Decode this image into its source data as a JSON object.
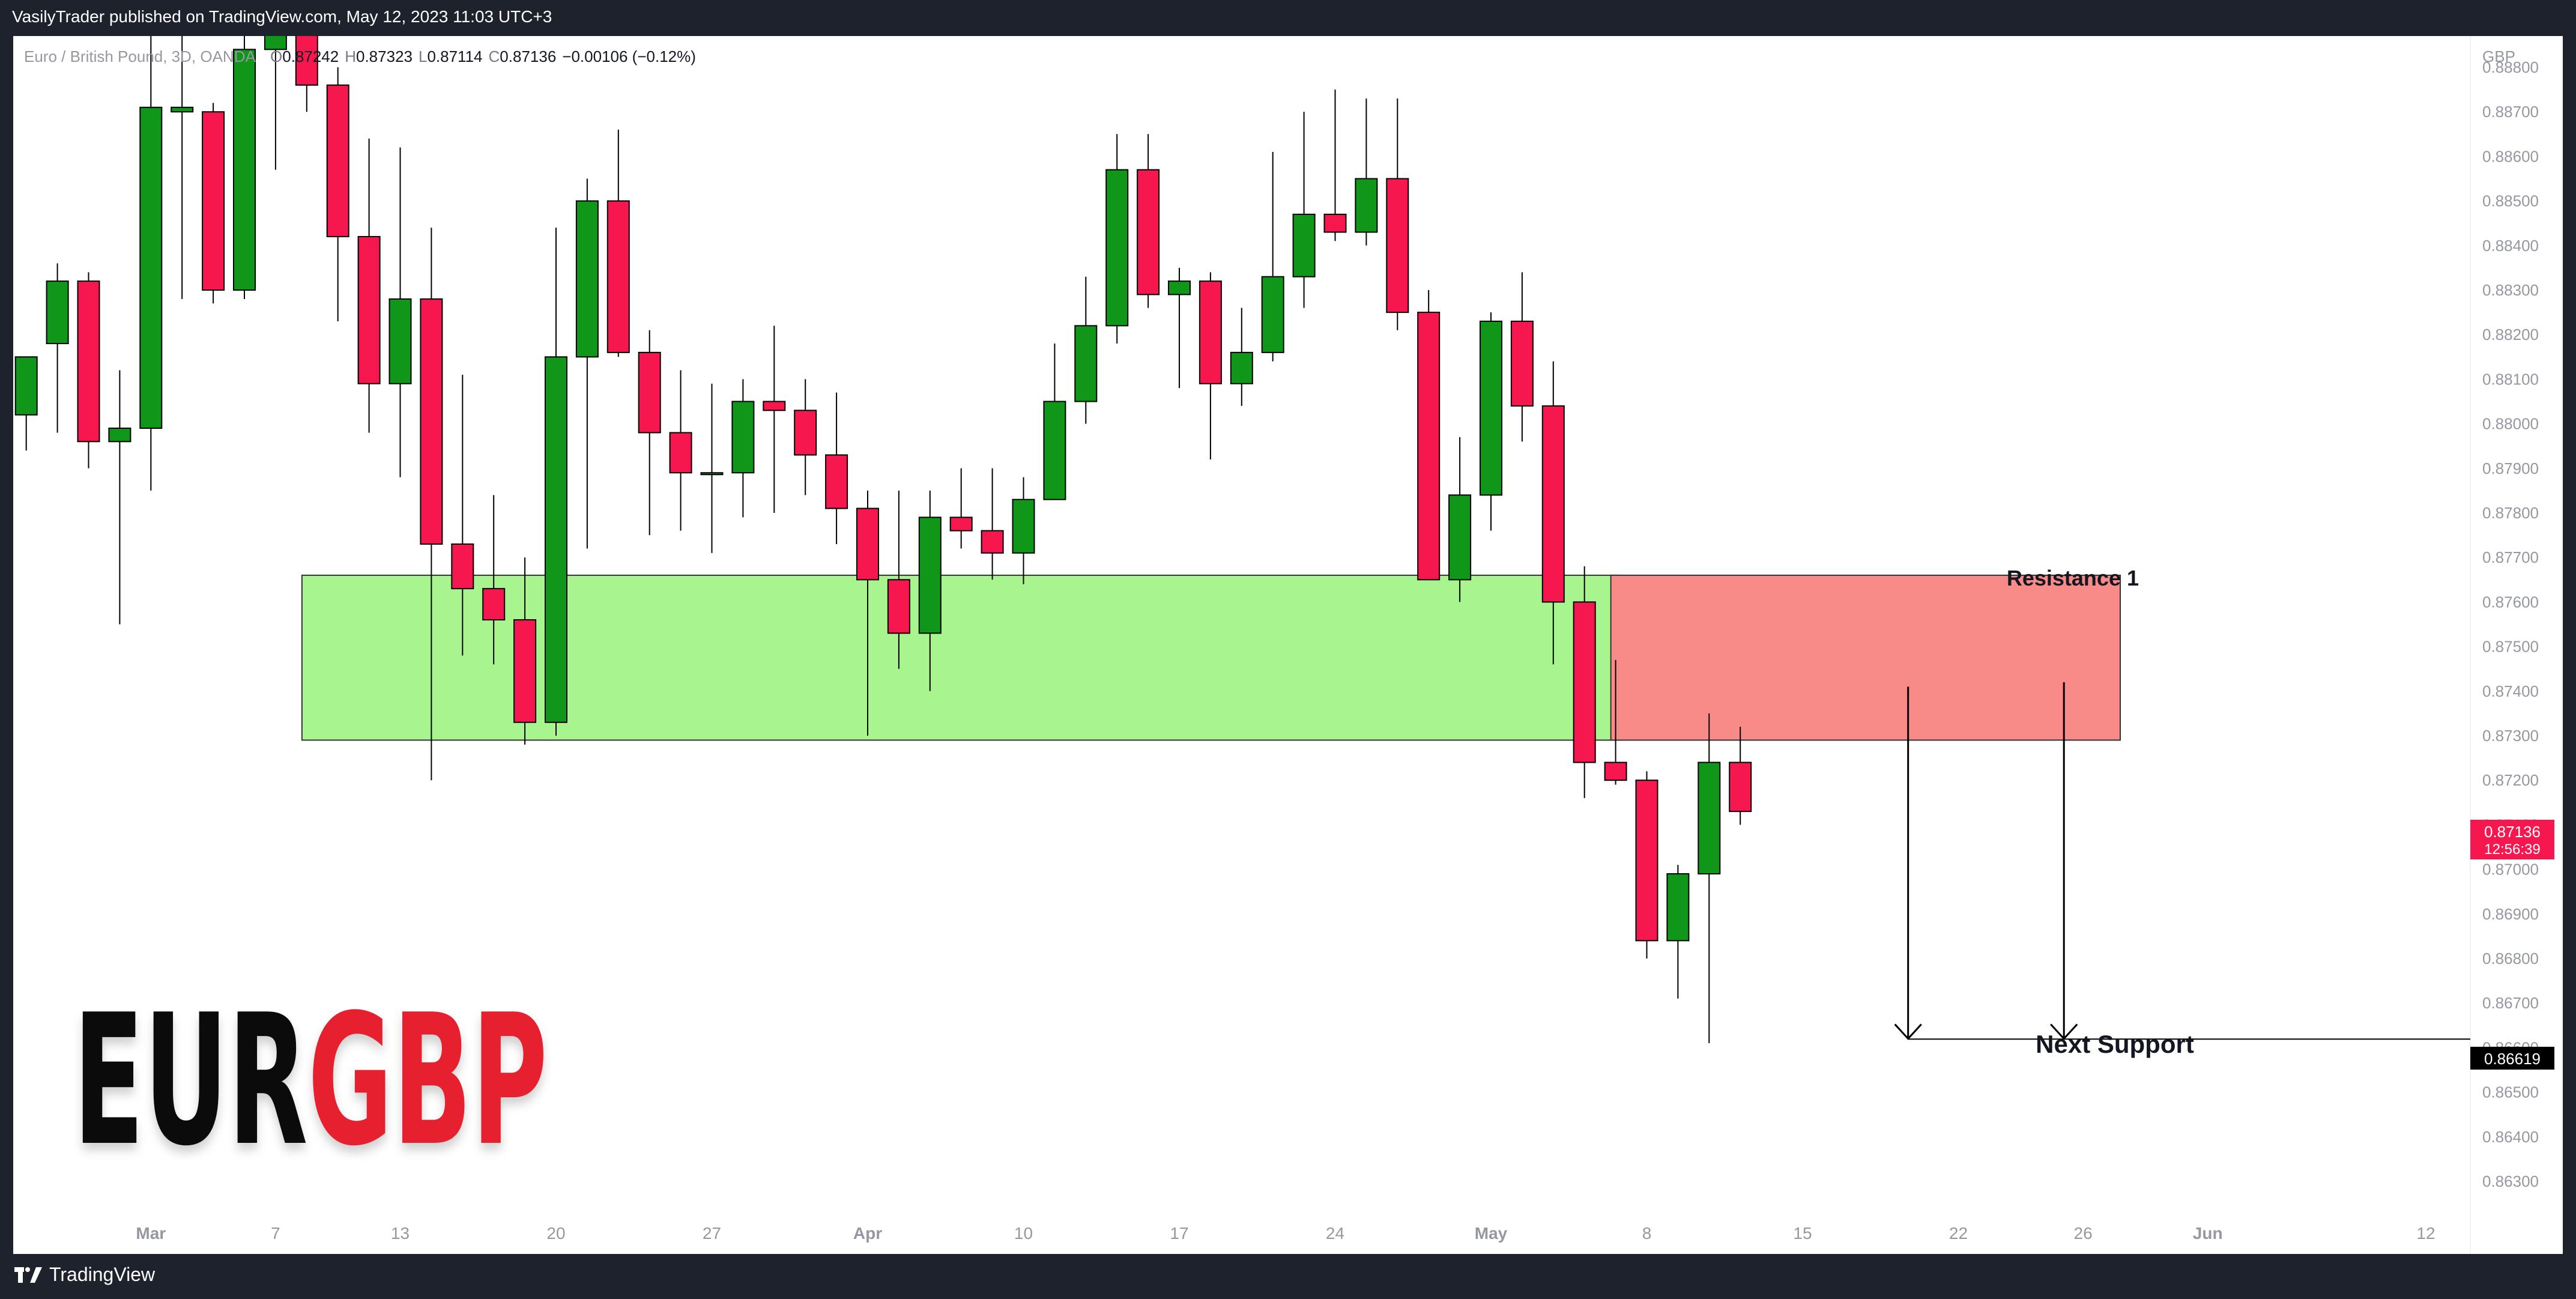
{
  "header": {
    "publish_line": "VasilyTrader published on TradingView.com, May 12, 2023 11:03 UTC+3"
  },
  "footer": {
    "brand": "TradingView"
  },
  "symbol_bar": {
    "name": "Euro / British Pound, 3D, OANDA",
    "open_label": "O",
    "open": "0.87242",
    "high_label": "H",
    "high": "0.87323",
    "low_label": "L",
    "low": "0.87114",
    "close_label": "C",
    "close": "0.87136",
    "change": "−0.00106 (−0.12%)"
  },
  "big_title": {
    "part1": "EUR",
    "part2": "GBP"
  },
  "colors": {
    "up": "#109618",
    "down": "#f7174f",
    "support_zone": "#a8f48e",
    "resistance_zone": "#f88a87",
    "title_part1": "#0b0b0b",
    "title_part2": "#e6202e",
    "price_tag": "#f7174f",
    "support_tag": "#000000"
  },
  "chart_data": {
    "type": "candlestick",
    "timeframe": "3D",
    "currency": "GBP",
    "ylim": [
      0.8625,
      0.8892
    ],
    "y_ticks": [
      "0.88800",
      "0.88700",
      "0.88600",
      "0.88500",
      "0.88400",
      "0.88300",
      "0.88200",
      "0.88100",
      "0.88000",
      "0.87900",
      "0.87800",
      "0.87700",
      "0.87600",
      "0.87500",
      "0.87400",
      "0.87300",
      "0.87200",
      "0.87100",
      "0.87000",
      "0.86900",
      "0.86800",
      "0.86700",
      "0.86600",
      "0.86500",
      "0.86400",
      "0.86300"
    ],
    "x_ticks": [
      {
        "label": "Mar",
        "candle": 4,
        "bold": true
      },
      {
        "label": "7",
        "candle": 8,
        "bold": false
      },
      {
        "label": "13",
        "candle": 12,
        "bold": false
      },
      {
        "label": "20",
        "candle": 17,
        "bold": false
      },
      {
        "label": "27",
        "candle": 22,
        "bold": false
      },
      {
        "label": "Apr",
        "candle": 27,
        "bold": true
      },
      {
        "label": "10",
        "candle": 32,
        "bold": false
      },
      {
        "label": "17",
        "candle": 37,
        "bold": false
      },
      {
        "label": "24",
        "candle": 42,
        "bold": false
      },
      {
        "label": "May",
        "candle": 47,
        "bold": true
      },
      {
        "label": "8",
        "candle": 52,
        "bold": false
      },
      {
        "label": "15",
        "candle": 57,
        "bold": false
      },
      {
        "label": "22",
        "candle": 62,
        "bold": false
      },
      {
        "label": "26",
        "candle": 66,
        "bold": false
      },
      {
        "label": "Jun",
        "candle": 70,
        "bold": true
      },
      {
        "label": "12",
        "candle": 77,
        "bold": false
      }
    ],
    "candles": [
      {
        "o": 0.8802,
        "h": 0.8815,
        "l": 0.8794,
        "c": 0.8815
      },
      {
        "o": 0.8818,
        "h": 0.8836,
        "l": 0.8798,
        "c": 0.8832
      },
      {
        "o": 0.8832,
        "h": 0.8834,
        "l": 0.879,
        "c": 0.8796
      },
      {
        "o": 0.8796,
        "h": 0.8812,
        "l": 0.8755,
        "c": 0.8799
      },
      {
        "o": 0.8799,
        "h": 0.89,
        "l": 0.8785,
        "c": 0.8871
      },
      {
        "o": 0.887,
        "h": 0.89,
        "l": 0.8828,
        "c": 0.8871
      },
      {
        "o": 0.887,
        "h": 0.8872,
        "l": 0.8827,
        "c": 0.883
      },
      {
        "o": 0.883,
        "h": 0.8892,
        "l": 0.8828,
        "c": 0.8884
      },
      {
        "o": 0.8884,
        "h": 0.89,
        "l": 0.8857,
        "c": 0.8892
      },
      {
        "o": 0.8895,
        "h": 0.89,
        "l": 0.887,
        "c": 0.8876
      },
      {
        "o": 0.8876,
        "h": 0.888,
        "l": 0.8823,
        "c": 0.8842
      },
      {
        "o": 0.8842,
        "h": 0.8864,
        "l": 0.8798,
        "c": 0.8809
      },
      {
        "o": 0.8809,
        "h": 0.8862,
        "l": 0.8788,
        "c": 0.8828
      },
      {
        "o": 0.8828,
        "h": 0.8844,
        "l": 0.872,
        "c": 0.8773
      },
      {
        "o": 0.8773,
        "h": 0.8811,
        "l": 0.8748,
        "c": 0.8763
      },
      {
        "o": 0.8763,
        "h": 0.8784,
        "l": 0.8746,
        "c": 0.8756
      },
      {
        "o": 0.8756,
        "h": 0.877,
        "l": 0.8728,
        "c": 0.8733
      },
      {
        "o": 0.8733,
        "h": 0.8844,
        "l": 0.873,
        "c": 0.8815
      },
      {
        "o": 0.8815,
        "h": 0.8855,
        "l": 0.8772,
        "c": 0.885
      },
      {
        "o": 0.885,
        "h": 0.8866,
        "l": 0.8815,
        "c": 0.8816
      },
      {
        "o": 0.8816,
        "h": 0.8821,
        "l": 0.8775,
        "c": 0.8798
      },
      {
        "o": 0.8798,
        "h": 0.8812,
        "l": 0.8776,
        "c": 0.8789
      },
      {
        "o": 0.8789,
        "h": 0.8809,
        "l": 0.8771,
        "c": 0.8789
      },
      {
        "o": 0.8789,
        "h": 0.881,
        "l": 0.8779,
        "c": 0.8805
      },
      {
        "o": 0.8805,
        "h": 0.8822,
        "l": 0.878,
        "c": 0.8803
      },
      {
        "o": 0.8803,
        "h": 0.881,
        "l": 0.8784,
        "c": 0.8793
      },
      {
        "o": 0.8793,
        "h": 0.8807,
        "l": 0.8773,
        "c": 0.8781
      },
      {
        "o": 0.8781,
        "h": 0.8785,
        "l": 0.873,
        "c": 0.8765
      },
      {
        "o": 0.8765,
        "h": 0.8785,
        "l": 0.8745,
        "c": 0.8753
      },
      {
        "o": 0.8753,
        "h": 0.8785,
        "l": 0.874,
        "c": 0.8779
      },
      {
        "o": 0.8779,
        "h": 0.879,
        "l": 0.8772,
        "c": 0.8776
      },
      {
        "o": 0.8776,
        "h": 0.879,
        "l": 0.8765,
        "c": 0.8771
      },
      {
        "o": 0.8771,
        "h": 0.8788,
        "l": 0.8764,
        "c": 0.8783
      },
      {
        "o": 0.8783,
        "h": 0.8818,
        "l": 0.8783,
        "c": 0.8805
      },
      {
        "o": 0.8805,
        "h": 0.8833,
        "l": 0.88,
        "c": 0.8822
      },
      {
        "o": 0.8822,
        "h": 0.8865,
        "l": 0.8818,
        "c": 0.8857
      },
      {
        "o": 0.8857,
        "h": 0.8865,
        "l": 0.8826,
        "c": 0.8829
      },
      {
        "o": 0.8829,
        "h": 0.8835,
        "l": 0.8808,
        "c": 0.8832
      },
      {
        "o": 0.8832,
        "h": 0.8834,
        "l": 0.8792,
        "c": 0.8809
      },
      {
        "o": 0.8809,
        "h": 0.8826,
        "l": 0.8804,
        "c": 0.8816
      },
      {
        "o": 0.8816,
        "h": 0.8861,
        "l": 0.8814,
        "c": 0.8833
      },
      {
        "o": 0.8833,
        "h": 0.887,
        "l": 0.8826,
        "c": 0.8847
      },
      {
        "o": 0.8847,
        "h": 0.8875,
        "l": 0.8841,
        "c": 0.8843
      },
      {
        "o": 0.8843,
        "h": 0.8873,
        "l": 0.884,
        "c": 0.8855
      },
      {
        "o": 0.8855,
        "h": 0.8873,
        "l": 0.8821,
        "c": 0.8825
      },
      {
        "o": 0.8825,
        "h": 0.883,
        "l": 0.8765,
        "c": 0.8765
      },
      {
        "o": 0.8765,
        "h": 0.8797,
        "l": 0.876,
        "c": 0.8784
      },
      {
        "o": 0.8784,
        "h": 0.8825,
        "l": 0.8776,
        "c": 0.8823
      },
      {
        "o": 0.8823,
        "h": 0.8834,
        "l": 0.8796,
        "c": 0.8804
      },
      {
        "o": 0.8804,
        "h": 0.8814,
        "l": 0.8746,
        "c": 0.876
      },
      {
        "o": 0.876,
        "h": 0.8768,
        "l": 0.8716,
        "c": 0.8724
      },
      {
        "o": 0.8724,
        "h": 0.8747,
        "l": 0.8719,
        "c": 0.872
      },
      {
        "o": 0.872,
        "h": 0.8722,
        "l": 0.868,
        "c": 0.8684
      },
      {
        "o": 0.8684,
        "h": 0.8701,
        "l": 0.8671,
        "c": 0.8699
      },
      {
        "o": 0.8699,
        "h": 0.8735,
        "l": 0.8661,
        "c": 0.8724
      },
      {
        "o": 0.8724,
        "h": 0.8732,
        "l": 0.871,
        "c": 0.8713
      }
    ],
    "zones": [
      {
        "name": "support",
        "from_candle": 9,
        "to_candle": 51,
        "top": 0.8766,
        "bottom": 0.8729
      },
      {
        "name": "resistance",
        "label": "Resistance 1",
        "from_candle": 51,
        "to_candle": 67,
        "top": 0.8766,
        "bottom": 0.8729
      }
    ],
    "arrows": [
      {
        "at_candle": 60,
        "from": 0.8741,
        "to": 0.8662
      },
      {
        "at_candle": 65,
        "from": 0.8742,
        "to": 0.8662
      }
    ],
    "support_line": {
      "label": "Next Support",
      "value": 0.86619,
      "from_candle": 60
    },
    "last_price": {
      "value": "0.87136",
      "countdown": "12:56:39"
    },
    "support_tag": "0.86619"
  }
}
